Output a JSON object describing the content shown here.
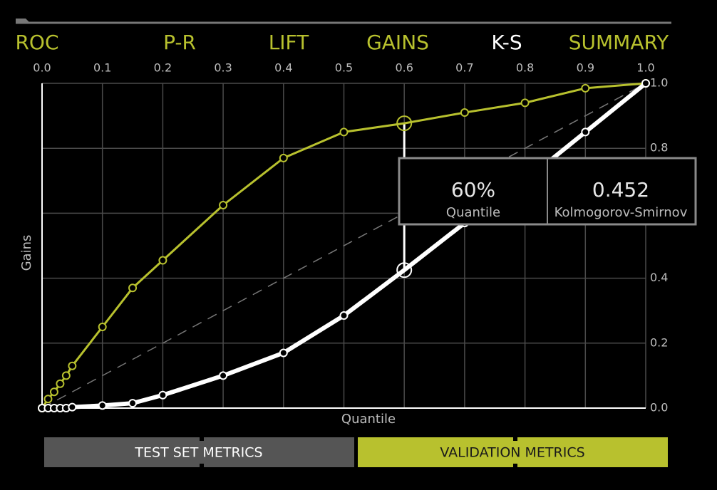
{
  "tabs": [
    {
      "label": "ROC",
      "color": "#b8c12e"
    },
    {
      "label": "P-R",
      "color": "#b8c12e"
    },
    {
      "label": "LIFT",
      "color": "#b8c12e"
    },
    {
      "label": "GAINS",
      "color": "#b8c12e"
    },
    {
      "label": "K-S",
      "color": "#ffffff"
    },
    {
      "label": "SUMMARY",
      "color": "#b8c12e"
    }
  ],
  "chart_data": {
    "type": "line",
    "x_label": "Quantile",
    "y_label": "Gains",
    "x": [
      0,
      0.01,
      0.02,
      0.03,
      0.04,
      0.05,
      0.1,
      0.15,
      0.2,
      0.3,
      0.4,
      0.5,
      0.6,
      0.7,
      0.8,
      0.9,
      1.0
    ],
    "series": [
      {
        "color": "#b8c12e",
        "values": [
          0,
          0.028,
          0.05,
          0.075,
          0.1,
          0.13,
          0.25,
          0.37,
          0.455,
          0.625,
          0.77,
          0.85,
          0.877,
          0.91,
          0.94,
          0.985,
          1.0
        ]
      },
      {
        "color": "#ffffff",
        "values": [
          0,
          0,
          0,
          0,
          0,
          0.003,
          0.008,
          0.015,
          0.04,
          0.1,
          0.17,
          0.285,
          0.425,
          0.57,
          0.7,
          0.85,
          1.0
        ]
      }
    ],
    "xlim": [
      0,
      1
    ],
    "ylim": [
      0,
      1
    ],
    "xticks": [
      {
        "value": 0,
        "label": "0.0"
      },
      0.1,
      0.2,
      0.3,
      0.4,
      0.5,
      0.6,
      0.7,
      0.8,
      0.9,
      {
        "value": 1,
        "label": "1.0"
      }
    ],
    "yticks": [
      {
        "value": 0,
        "label": "0.0"
      },
      0.2,
      0.4,
      0.6,
      0.8,
      {
        "value": 1,
        "label": "1.0"
      }
    ],
    "grid": true,
    "highlight_x": 0.6,
    "tooltip": {
      "left_value": "60%",
      "left_label": "Quantile",
      "right_value": "0.452",
      "right_label": "Kolmogorov-Smirnov"
    }
  },
  "buttons": [
    {
      "label": "TEST SET METRICS",
      "color": "#555555",
      "text_color": "#ffffff"
    },
    {
      "label": "VALIDATION METRICS",
      "color": "#b8c12e",
      "text_color": "#1a1a1a"
    }
  ]
}
